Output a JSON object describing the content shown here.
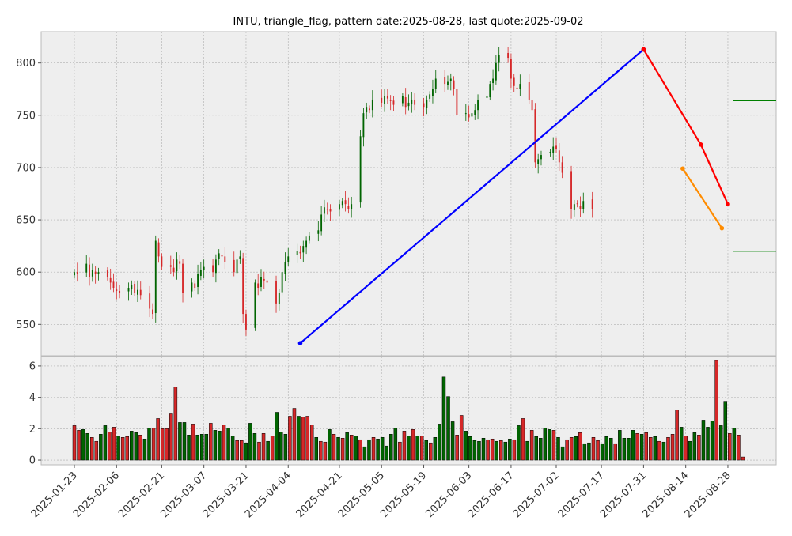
{
  "title": "INTU, triangle_flag, pattern date:2025-08-28, last quote:2025-09-02",
  "colors": {
    "up": "#006400",
    "down": "#d62728",
    "blue_line": "#0000ff",
    "red_line": "#ff0000",
    "orange_line": "#ff8c00",
    "level_line": "#008000",
    "panel_bg": "#eeeeee",
    "grid": "#b0b0b0"
  },
  "chart_data": [
    {
      "type": "candlestick",
      "x_start": "2025-01-23",
      "x_end": "2025-09-02",
      "ylim": [
        520,
        830
      ],
      "yticks": [
        "550",
        "600",
        "650",
        "700",
        "750",
        "800"
      ],
      "xticks": [
        "2025-01-23",
        "2025-02-06",
        "2025-02-21",
        "2025-03-07",
        "2025-03-21",
        "2025-04-04",
        "2025-04-21",
        "2025-05-05",
        "2025-05-19",
        "2025-06-03",
        "2025-06-17",
        "2025-07-02",
        "2025-07-17",
        "2025-07-31",
        "2025-08-14",
        "2025-08-28"
      ],
      "close_approx": [
        600,
        598,
        608,
        595,
        602,
        598,
        600,
        595,
        590,
        585,
        582,
        580,
        585,
        588,
        580,
        583,
        578,
        565,
        560,
        630,
        615,
        605,
        605,
        600,
        612,
        608,
        580,
        590,
        585,
        598,
        602,
        605,
        600,
        612,
        618,
        615,
        610,
        600,
        612,
        615,
        560,
        545,
        590,
        585,
        595,
        592,
        590,
        570,
        580,
        600,
        610,
        615,
        620,
        618,
        625,
        630,
        635,
        640,
        655,
        662,
        660,
        658,
        665,
        668,
        665,
        660,
        665,
        730,
        752,
        758,
        755,
        765,
        762,
        768,
        766,
        764,
        760,
        768,
        758,
        762,
        765,
        760,
        758,
        765,
        770,
        775,
        785,
        780,
        782,
        785,
        775,
        750,
        752,
        748,
        752,
        755,
        765,
        768,
        780,
        785,
        800,
        808,
        805,
        785,
        778,
        775,
        780,
        765,
        755,
        705,
        708,
        712,
        715,
        720,
        718,
        705,
        695,
        660,
        665,
        665,
        660,
        668,
        660
      ],
      "overlays": [
        {
          "name": "",
          "color": "blue",
          "points": [
            [
              "2025-04-08",
              532
            ],
            [
              "2025-07-31",
              813
            ]
          ]
        },
        {
          "name": "",
          "color": "red",
          "points": [
            [
              "2025-07-31",
              813
            ],
            [
              "2025-08-19",
              722
            ],
            [
              "2025-08-28",
              665
            ]
          ]
        },
        {
          "name": "",
          "color": "orange",
          "points": [
            [
              "2025-08-13",
              699
            ],
            [
              "2025-08-26",
              642
            ]
          ]
        }
      ],
      "levels": [
        764,
        620
      ]
    },
    {
      "type": "bar",
      "ylim": [
        -0.3,
        6.6
      ],
      "yticks": [
        "0",
        "2",
        "4",
        "6"
      ],
      "values": [
        2.2,
        1.9,
        1.95,
        1.7,
        1.45,
        1.2,
        1.65,
        2.2,
        1.8,
        2.1,
        1.55,
        1.45,
        1.5,
        1.85,
        1.75,
        1.6,
        1.35,
        2.05,
        2.05,
        2.65,
        2.0,
        2.0,
        2.95,
        4.65,
        2.4,
        2.4,
        1.6,
        2.3,
        1.6,
        1.65,
        1.65,
        2.35,
        1.9,
        1.85,
        2.25,
        2.05,
        1.55,
        1.25,
        1.25,
        1.1,
        2.35,
        1.7,
        1.15,
        1.7,
        1.2,
        1.55,
        3.05,
        1.8,
        1.65,
        2.8,
        3.3,
        2.8,
        2.75,
        2.8,
        2.25,
        1.45,
        1.2,
        1.15,
        1.95,
        1.65,
        1.45,
        1.4,
        1.75,
        1.6,
        1.55,
        1.3,
        0.85,
        1.3,
        1.45,
        1.35,
        1.45,
        0.9,
        1.65,
        2.05,
        1.15,
        1.85,
        1.55,
        1.95,
        1.55,
        1.55,
        1.25,
        1.1,
        1.45,
        2.3,
        5.3,
        4.05,
        2.45,
        1.6,
        2.85,
        1.85,
        1.5,
        1.25,
        1.2,
        1.4,
        1.3,
        1.35,
        1.2,
        1.25,
        1.15,
        1.35,
        1.3,
        2.2,
        2.65,
        1.2,
        1.9,
        1.5,
        1.4,
        2.05,
        1.95,
        1.9,
        1.45,
        0.85,
        1.3,
        1.45,
        1.5,
        1.75,
        1.05,
        1.1,
        1.45,
        1.25,
        1.05,
        1.5,
        1.4,
        1.05,
        1.9,
        1.4,
        1.4,
        1.9,
        1.7,
        1.65,
        1.75,
        1.45,
        1.5,
        1.2,
        1.15,
        1.45,
        1.65,
        3.2,
        2.1,
        1.55,
        1.2,
        1.75,
        1.6,
        2.55,
        2.1,
        2.5,
        6.35,
        2.2,
        3.75,
        1.7,
        2.05,
        1.6,
        0.2
      ],
      "up": [
        false,
        false,
        true,
        true,
        false,
        false,
        true,
        true,
        false,
        false,
        true,
        false,
        false,
        true,
        true,
        false,
        true,
        true,
        false,
        false,
        false,
        false,
        false,
        false,
        true,
        true,
        true,
        false,
        true,
        true,
        true,
        false,
        true,
        true,
        false,
        true,
        true,
        false,
        false,
        true,
        true,
        true,
        false,
        false,
        true,
        false,
        true,
        true,
        true,
        false,
        false,
        true,
        false,
        false,
        false,
        true,
        false,
        false,
        true,
        false,
        true,
        false,
        true,
        false,
        true,
        false,
        true,
        true,
        false,
        true,
        true,
        true,
        true,
        true,
        false,
        false,
        true,
        false,
        true,
        false,
        true,
        false,
        true,
        true,
        true,
        true,
        true,
        false,
        false,
        true,
        true,
        true,
        true,
        true,
        false,
        false,
        true,
        false,
        true,
        true,
        false,
        true,
        false,
        true,
        false,
        true,
        true,
        true,
        true,
        false,
        true,
        true,
        false,
        false,
        true,
        false,
        true,
        true,
        false,
        false,
        true,
        true,
        true,
        false,
        true,
        true,
        true,
        true,
        false,
        true,
        false,
        false,
        true,
        false,
        true,
        false,
        false,
        false,
        true,
        false,
        true,
        true,
        false,
        true,
        true,
        true,
        false,
        true,
        true,
        false,
        true
      ]
    }
  ]
}
